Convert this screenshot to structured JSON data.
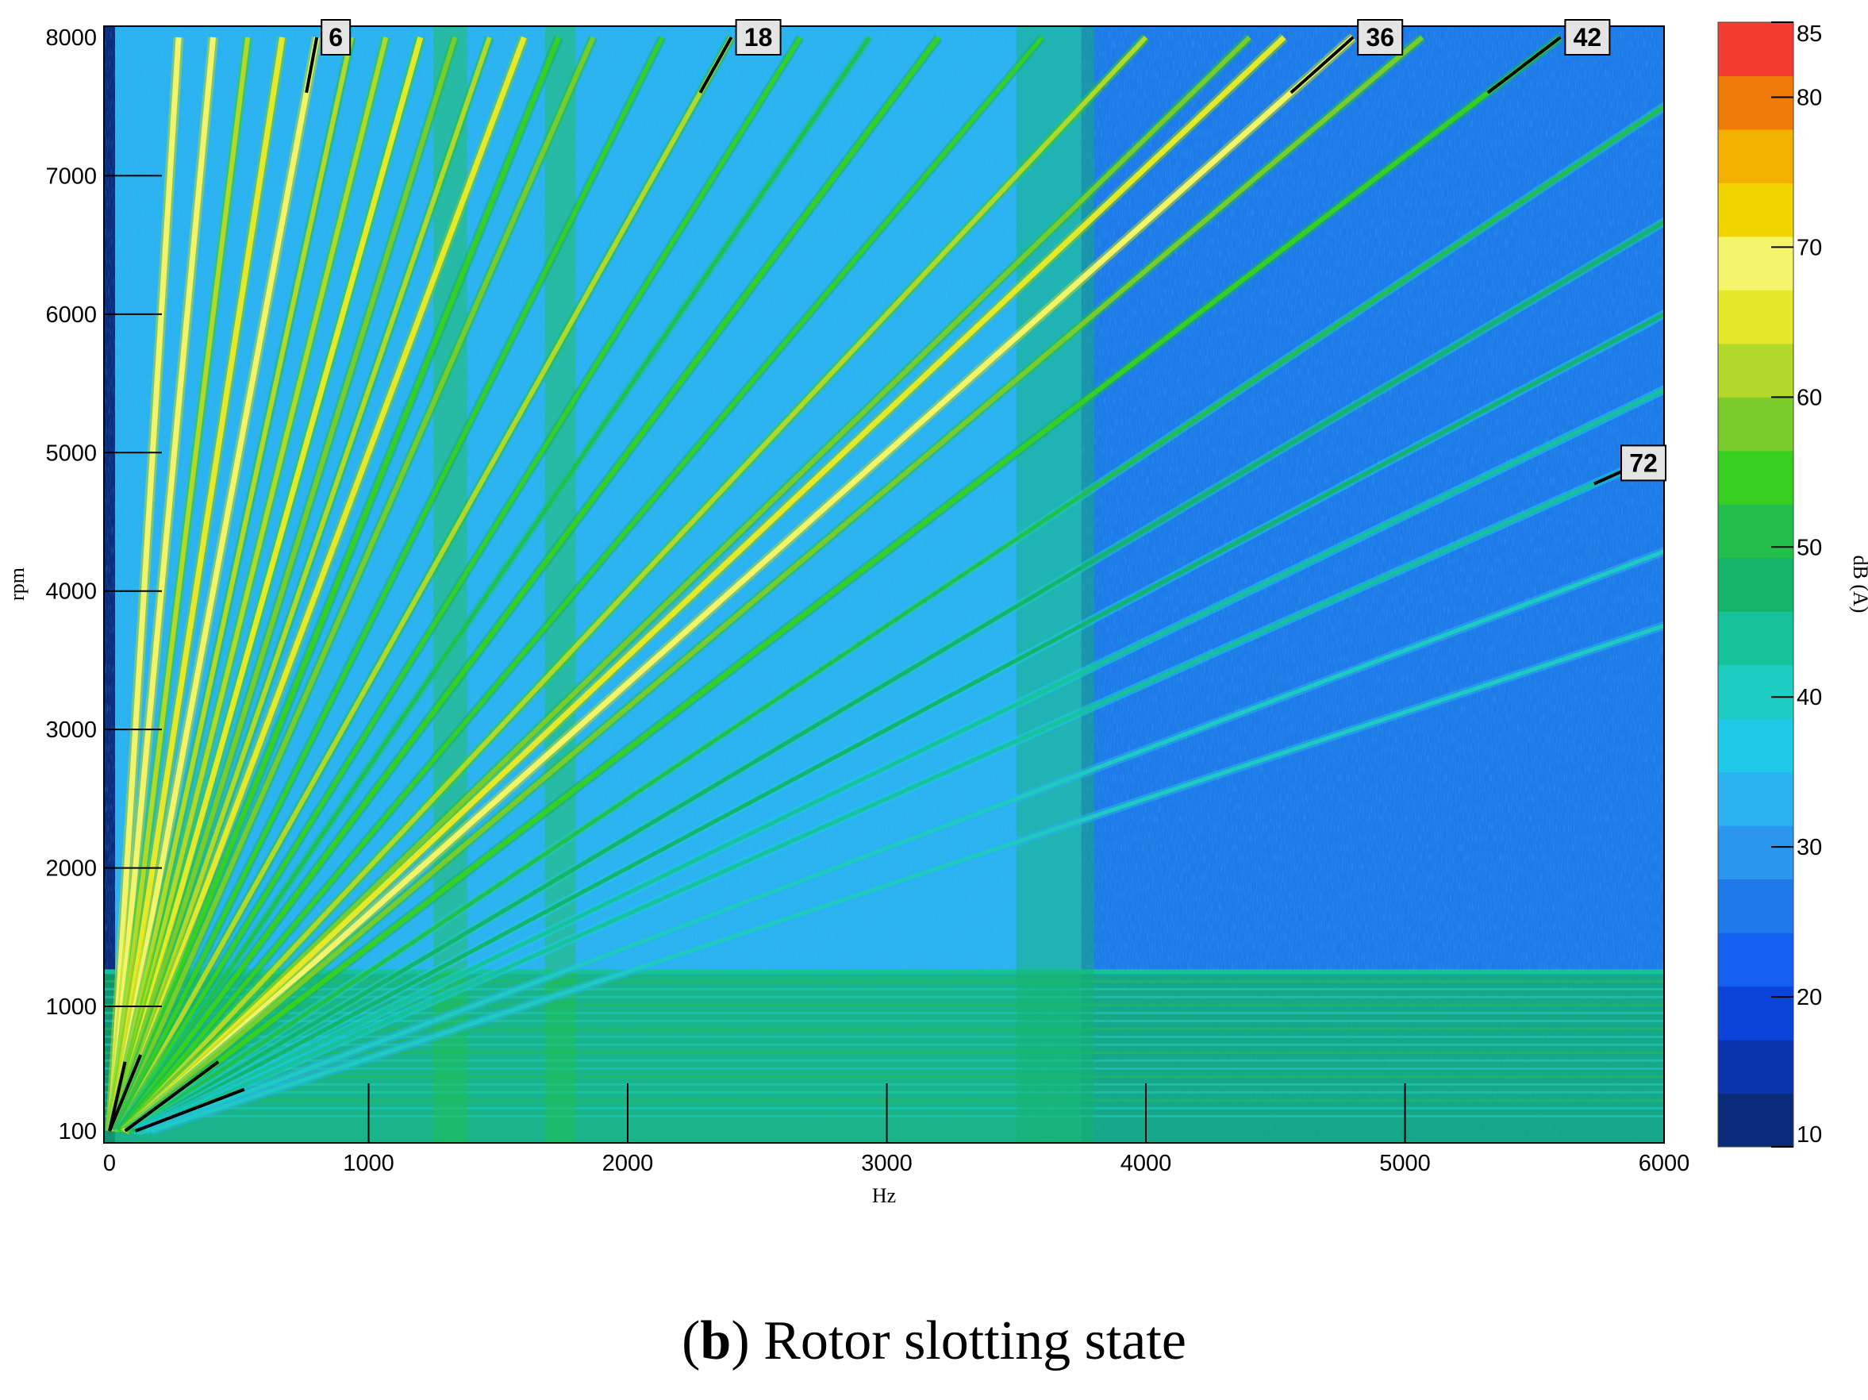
{
  "caption": {
    "letter": "b",
    "text": ") Rotor slotting state",
    "open": "("
  },
  "chart_data": {
    "type": "heatmap",
    "subtype": "campbell-colormap",
    "xlabel": "Hz",
    "ylabel": "rpm",
    "xlim": [
      0,
      6000
    ],
    "ylim": [
      100,
      8000
    ],
    "x_ticks": [
      0,
      1000,
      2000,
      3000,
      4000,
      5000,
      6000
    ],
    "y_ticks": [
      100,
      1000,
      2000,
      3000,
      4000,
      5000,
      6000,
      7000,
      8000
    ],
    "colorbar": {
      "label": "dB (A)",
      "range": [
        10,
        85
      ],
      "ticks": [
        10,
        20,
        30,
        40,
        50,
        60,
        70,
        80,
        85
      ],
      "bands": [
        "#0a2a7a",
        "#0a33b0",
        "#0b44d8",
        "#1560f0",
        "#1e7ae8",
        "#2a96ee",
        "#2bb2f0",
        "#1ecae8",
        "#1dccc0",
        "#16c29a",
        "#14b46a",
        "#22c04a",
        "#38d020",
        "#7acc2a",
        "#b2d82a",
        "#e6e82a",
        "#f4f46a",
        "#f2d400",
        "#f2b000",
        "#f07a08",
        "#f43c30"
      ]
    },
    "orders": [
      {
        "order": 6,
        "label": "6",
        "labeled": true
      },
      {
        "order": 18,
        "label": "18",
        "labeled": true
      },
      {
        "order": 36,
        "label": "36",
        "labeled": true
      },
      {
        "order": 42,
        "label": "42",
        "labeled": true
      },
      {
        "order": 72,
        "label": "72",
        "labeled": true
      }
    ],
    "order_lines": [
      {
        "order": 2,
        "level": 68
      },
      {
        "order": 3,
        "level": 70
      },
      {
        "order": 4,
        "level": 62
      },
      {
        "order": 5,
        "level": 66
      },
      {
        "order": 6,
        "level": 68
      },
      {
        "order": 7,
        "level": 60
      },
      {
        "order": 8,
        "level": 62
      },
      {
        "order": 9,
        "level": 64
      },
      {
        "order": 10,
        "level": 58
      },
      {
        "order": 11,
        "level": 60
      },
      {
        "order": 12,
        "level": 66
      },
      {
        "order": 13,
        "level": 56
      },
      {
        "order": 14,
        "level": 58
      },
      {
        "order": 16,
        "level": 54
      },
      {
        "order": 18,
        "level": 60
      },
      {
        "order": 20,
        "level": 54
      },
      {
        "order": 22,
        "level": 52
      },
      {
        "order": 24,
        "level": 56
      },
      {
        "order": 27,
        "level": 54
      },
      {
        "order": 30,
        "level": 62
      },
      {
        "order": 33,
        "level": 58
      },
      {
        "order": 34,
        "level": 66
      },
      {
        "order": 36,
        "level": 70
      },
      {
        "order": 38,
        "level": 58
      },
      {
        "order": 42,
        "level": 56
      },
      {
        "order": 48,
        "level": 50
      },
      {
        "order": 54,
        "level": 48
      },
      {
        "order": 60,
        "level": 46
      },
      {
        "order": 66,
        "level": 44
      },
      {
        "order": 72,
        "level": 44
      },
      {
        "order": 84,
        "level": 42
      },
      {
        "order": 96,
        "level": 40
      }
    ],
    "resonance_bands": [
      {
        "x_from": 1250,
        "x_to": 1380,
        "level": 52
      },
      {
        "x_from": 1680,
        "x_to": 1800,
        "level": 50
      },
      {
        "x_from": 3500,
        "x_to": 3800,
        "level": 48
      }
    ],
    "low_speed_region": {
      "rpm_max": 1250,
      "level": 46
    },
    "background_levels": [
      {
        "x_from": 0,
        "x_to": 3750,
        "level": 34
      },
      {
        "x_from": 3750,
        "x_to": 6000,
        "level": 26
      }
    ]
  }
}
